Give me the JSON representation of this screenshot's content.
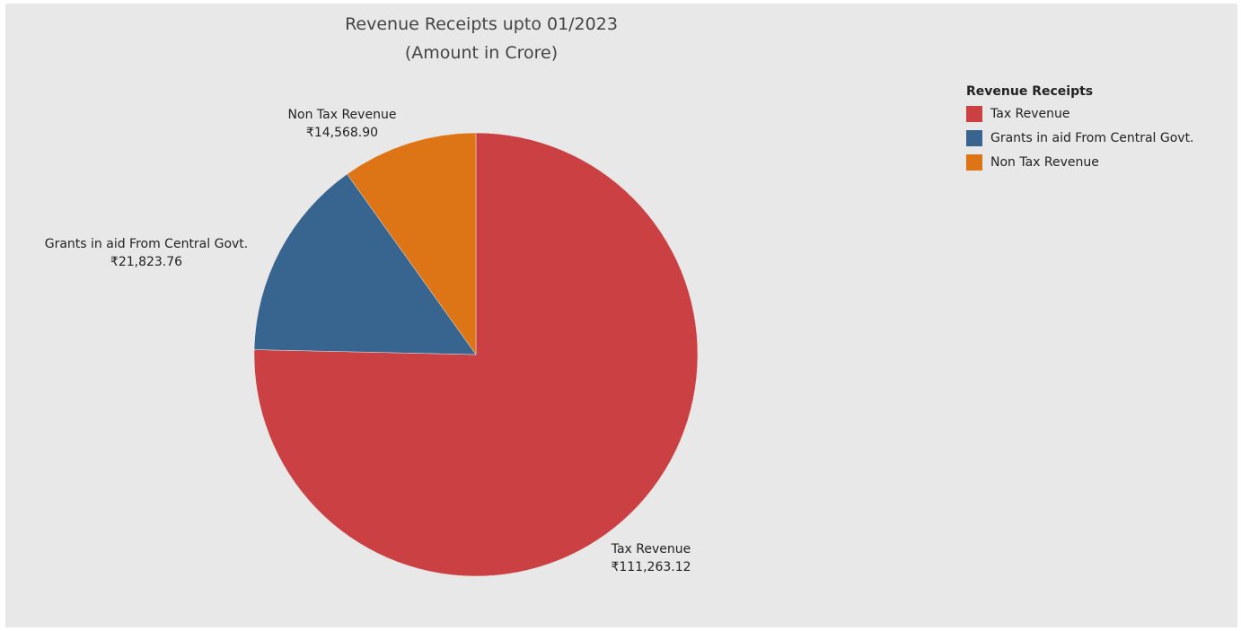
{
  "chart_data": {
    "type": "pie",
    "title": "Revenue Receipts upto 01/2023",
    "subtitle": "(Amount in Crore)",
    "legend_title": "Revenue Receipts",
    "legend_position": "top-right",
    "slices": [
      {
        "name": "Tax Revenue",
        "value": 111263.12,
        "label_value": "₹111,263.12",
        "color": "#cb4043"
      },
      {
        "name": "Grants in aid From Central Govt.",
        "value": 21823.76,
        "label_value": "₹21,823.76",
        "color": "#386490"
      },
      {
        "name": "Non Tax Revenue",
        "value": 14568.9,
        "label_value": "₹14,568.90",
        "color": "#dd7517"
      }
    ]
  }
}
